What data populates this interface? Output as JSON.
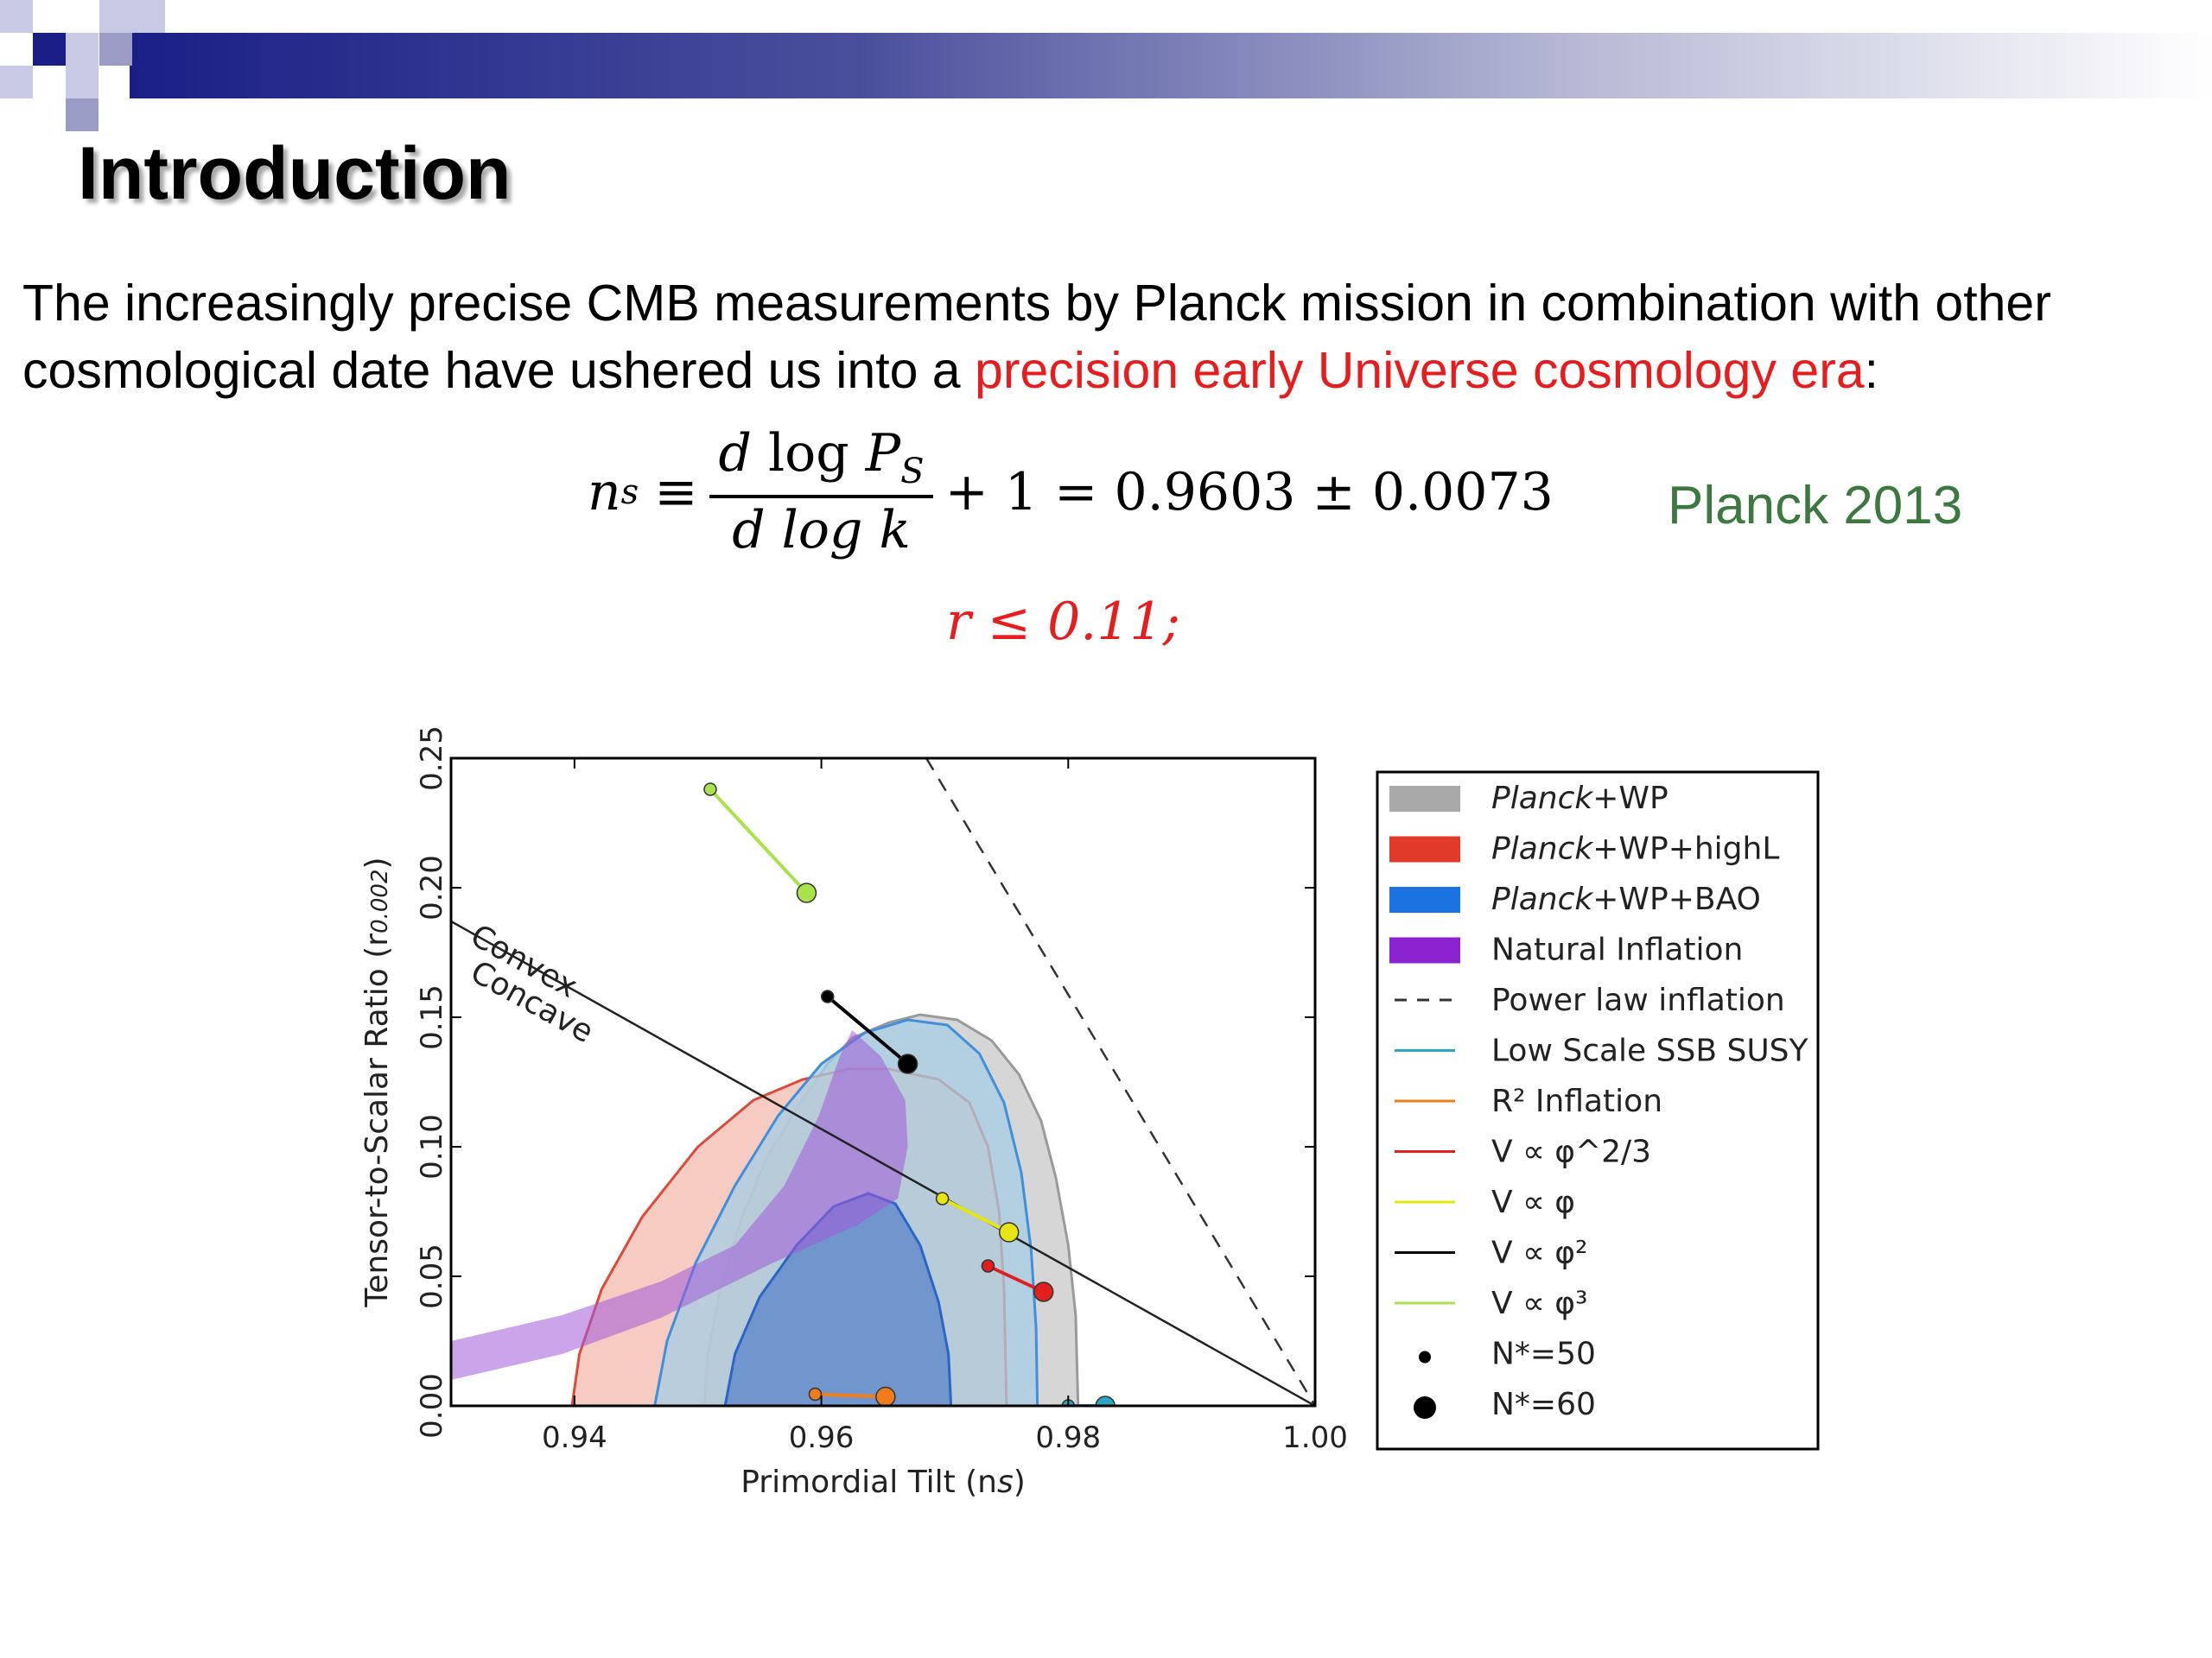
{
  "slide": {
    "title": "Introduction",
    "intro_text_1": "The increasingly precise CMB measurements by Planck mission in combination with other cosmological date have ushered us into a ",
    "intro_highlight": "precision early Universe cosmology era",
    "intro_text_2": ":",
    "equation": {
      "lhs": "n",
      "lhs_sub": "s",
      "equiv": "≡",
      "num_d": "d",
      "num_log": "log",
      "num_P": "P",
      "num_sub": "S",
      "den": "d log k",
      "rhs": "+ 1 = 0.9603 ± 0.0073"
    },
    "equation_label": "Planck 2013",
    "r_constraint": "r ≤ 0.11;",
    "accent_color": "#e81c1c",
    "label_color": "#3c7840"
  },
  "chart_data": {
    "type": "scatter",
    "xlabel": "Primordial Tilt (n",
    "xlabel_sub": "s",
    "xlabel_end": ")",
    "ylabel": "Tensor-to-Scalar Ratio (r",
    "ylabel_sub": "0.002",
    "ylabel_end": ")",
    "xlim": [
      0.93,
      1.0
    ],
    "ylim": [
      0.0,
      0.25
    ],
    "xticks": [
      {
        "value": 0.94,
        "label": "0.94"
      },
      {
        "value": 0.96,
        "label": "0.96"
      },
      {
        "value": 0.98,
        "label": "0.98"
      },
      {
        "value": 1.0,
        "label": "1.00"
      }
    ],
    "yticks": [
      {
        "value": 0.0,
        "label": "0.00"
      },
      {
        "value": 0.05,
        "label": "0.05"
      },
      {
        "value": 0.1,
        "label": "0.10"
      },
      {
        "value": 0.15,
        "label": "0.15"
      },
      {
        "value": 0.2,
        "label": "0.20"
      },
      {
        "value": 0.25,
        "label": "0.25"
      }
    ],
    "annotations": [
      {
        "text": "Convex",
        "x": 0.9314,
        "y": 0.179,
        "angle": 29
      },
      {
        "text": "Concave",
        "x": 0.9314,
        "y": 0.165,
        "angle": 29
      }
    ],
    "legend_position": "outside-right",
    "contours": [
      {
        "name": "Planck+WP outer",
        "color": "#c8c8c8",
        "stroke": "#9a9a9a",
        "points": [
          [
            0.9505,
            0.0
          ],
          [
            0.9508,
            0.02
          ],
          [
            0.9518,
            0.045
          ],
          [
            0.9535,
            0.072
          ],
          [
            0.9555,
            0.095
          ],
          [
            0.958,
            0.115
          ],
          [
            0.9605,
            0.132
          ],
          [
            0.9625,
            0.142
          ],
          [
            0.9655,
            0.148
          ],
          [
            0.968,
            0.151
          ],
          [
            0.971,
            0.149
          ],
          [
            0.9738,
            0.141
          ],
          [
            0.976,
            0.128
          ],
          [
            0.9778,
            0.11
          ],
          [
            0.979,
            0.088
          ],
          [
            0.98,
            0.062
          ],
          [
            0.9806,
            0.035
          ],
          [
            0.9808,
            0.0
          ]
        ]
      },
      {
        "name": "Planck+WP+highL outer",
        "color": "#f1b9ae",
        "stroke": "#dd4a3a",
        "points": [
          [
            0.9398,
            0.0
          ],
          [
            0.9404,
            0.02
          ],
          [
            0.9422,
            0.045
          ],
          [
            0.9455,
            0.073
          ],
          [
            0.95,
            0.1
          ],
          [
            0.9545,
            0.118
          ],
          [
            0.9585,
            0.126
          ],
          [
            0.9622,
            0.13
          ],
          [
            0.9655,
            0.13
          ],
          [
            0.9695,
            0.126
          ],
          [
            0.972,
            0.117
          ],
          [
            0.9735,
            0.1
          ],
          [
            0.9744,
            0.075
          ],
          [
            0.9748,
            0.045
          ],
          [
            0.975,
            0.0
          ]
        ]
      },
      {
        "name": "Planck+WP+BAO outer",
        "color": "#a6cde4",
        "stroke": "#3f8fdc",
        "points": [
          [
            0.9465,
            0.0
          ],
          [
            0.9475,
            0.025
          ],
          [
            0.9498,
            0.055
          ],
          [
            0.953,
            0.085
          ],
          [
            0.9565,
            0.112
          ],
          [
            0.96,
            0.132
          ],
          [
            0.9635,
            0.144
          ],
          [
            0.967,
            0.149
          ],
          [
            0.9702,
            0.147
          ],
          [
            0.9728,
            0.136
          ],
          [
            0.9748,
            0.117
          ],
          [
            0.9762,
            0.09
          ],
          [
            0.977,
            0.06
          ],
          [
            0.9774,
            0.03
          ],
          [
            0.9775,
            0.0
          ]
        ]
      },
      {
        "name": "Planck+WP+BAO inner",
        "color": "#5a84c9",
        "stroke": "#2a66c8",
        "points": [
          [
            0.9522,
            0.0
          ],
          [
            0.953,
            0.02
          ],
          [
            0.955,
            0.042
          ],
          [
            0.958,
            0.062
          ],
          [
            0.961,
            0.077
          ],
          [
            0.9638,
            0.082
          ],
          [
            0.966,
            0.078
          ],
          [
            0.968,
            0.062
          ],
          [
            0.9695,
            0.04
          ],
          [
            0.9703,
            0.02
          ],
          [
            0.9705,
            0.0
          ]
        ]
      },
      {
        "name": "Natural Inflation",
        "color": "#a15ad9",
        "stroke": "none",
        "points": [
          [
            0.93,
            0.025
          ],
          [
            0.939,
            0.035
          ],
          [
            0.947,
            0.048
          ],
          [
            0.953,
            0.062
          ],
          [
            0.957,
            0.085
          ],
          [
            0.9598,
            0.112
          ],
          [
            0.9615,
            0.135
          ],
          [
            0.9625,
            0.145
          ],
          [
            0.9648,
            0.135
          ],
          [
            0.9668,
            0.118
          ],
          [
            0.967,
            0.1
          ],
          [
            0.9662,
            0.08
          ],
          [
            0.963,
            0.07
          ],
          [
            0.956,
            0.055
          ],
          [
            0.947,
            0.034
          ],
          [
            0.939,
            0.02
          ],
          [
            0.93,
            0.01
          ]
        ]
      }
    ],
    "lines": [
      {
        "name": "Power law inflation",
        "color": "#333333",
        "dash": true,
        "points": [
          [
            0.9685,
            0.25
          ],
          [
            1.0,
            0.0
          ]
        ]
      },
      {
        "name": "Convex/Concave boundary",
        "color": "#222222",
        "dash": false,
        "points": [
          [
            0.93,
            0.187
          ],
          [
            1.0,
            0.0
          ]
        ]
      },
      {
        "name": "V ∝ φ^3",
        "color": "#a9e34b",
        "points": [
          [
            0.951,
            0.238
          ],
          [
            0.9588,
            0.198
          ]
        ]
      },
      {
        "name": "V ∝ φ^2",
        "color": "#000000",
        "points": [
          [
            0.9605,
            0.158
          ],
          [
            0.967,
            0.132
          ]
        ]
      },
      {
        "name": "V ∝ φ",
        "color": "#e5e512",
        "points": [
          [
            0.9698,
            0.08
          ],
          [
            0.9752,
            0.067
          ]
        ]
      },
      {
        "name": "V ∝ φ^{2/3}",
        "color": "#e21f1f",
        "points": [
          [
            0.9735,
            0.054
          ],
          [
            0.978,
            0.044
          ]
        ]
      },
      {
        "name": "R^2 Inflation",
        "color": "#f07c1c",
        "points": [
          [
            0.9595,
            0.0045
          ],
          [
            0.9652,
            0.0035
          ]
        ]
      },
      {
        "name": "Low Scale SSB SUSY",
        "color": "#2aa7c3",
        "points": [
          [
            0.98,
            0.0
          ],
          [
            0.983,
            0.0
          ]
        ]
      }
    ],
    "points": [
      {
        "name": "phi3-N50",
        "x": 0.951,
        "y": 0.238,
        "color": "#a9e34b",
        "size": "small"
      },
      {
        "name": "phi3-N60",
        "x": 0.9588,
        "y": 0.198,
        "color": "#a9e34b",
        "size": "large"
      },
      {
        "name": "phi2-N50",
        "x": 0.9605,
        "y": 0.158,
        "color": "#000000",
        "size": "small"
      },
      {
        "name": "phi2-N60",
        "x": 0.967,
        "y": 0.132,
        "color": "#000000",
        "size": "large"
      },
      {
        "name": "phi-N50",
        "x": 0.9698,
        "y": 0.08,
        "color": "#e5e512",
        "size": "small"
      },
      {
        "name": "phi-N60",
        "x": 0.9752,
        "y": 0.067,
        "color": "#e5e512",
        "size": "large"
      },
      {
        "name": "phi23-N50",
        "x": 0.9735,
        "y": 0.054,
        "color": "#e21f1f",
        "size": "small"
      },
      {
        "name": "phi23-N60",
        "x": 0.978,
        "y": 0.044,
        "color": "#e21f1f",
        "size": "large"
      },
      {
        "name": "R2-N50",
        "x": 0.9595,
        "y": 0.0045,
        "color": "#f07c1c",
        "size": "small"
      },
      {
        "name": "R2-N60",
        "x": 0.9652,
        "y": 0.0035,
        "color": "#f07c1c",
        "size": "large"
      },
      {
        "name": "SSB-N50",
        "x": 0.98,
        "y": 0.0,
        "color": "#2aa7c3",
        "size": "small"
      },
      {
        "name": "SSB-N60",
        "x": 0.983,
        "y": 0.0,
        "color": "#2aa7c3",
        "size": "large"
      }
    ],
    "legend": [
      {
        "type": "patch",
        "color": "#a8a8a8",
        "label_it": "Planck",
        "label": "+WP"
      },
      {
        "type": "patch",
        "color": "#e23a2a",
        "label_it": "Planck",
        "label": "+WP+highL"
      },
      {
        "type": "patch",
        "color": "#1a73e0",
        "label_it": "Planck",
        "label": "+WP+BAO"
      },
      {
        "type": "patch",
        "color": "#8a22cf",
        "label_it": "",
        "label": "Natural Inflation"
      },
      {
        "type": "dash",
        "color": "#333333",
        "label_it": "",
        "label": "Power law inflation"
      },
      {
        "type": "line",
        "color": "#2aa7c3",
        "label_it": "",
        "label": "Low Scale SSB SUSY"
      },
      {
        "type": "line",
        "color": "#f07c1c",
        "label_it": "",
        "label": "R² Inflation"
      },
      {
        "type": "line",
        "color": "#e21f1f",
        "label_it": "",
        "label": "V ∝ φ^2/3"
      },
      {
        "type": "line",
        "color": "#e5e512",
        "label_it": "",
        "label": "V ∝ φ"
      },
      {
        "type": "line",
        "color": "#000000",
        "label_it": "",
        "label": "V ∝ φ²"
      },
      {
        "type": "line",
        "color": "#a9e34b",
        "label_it": "",
        "label": "V ∝ φ³"
      },
      {
        "type": "dot-small",
        "color": "#000000",
        "label_it": "",
        "label": "N*=50"
      },
      {
        "type": "dot-large",
        "color": "#000000",
        "label_it": "",
        "label": "N*=60"
      }
    ]
  }
}
